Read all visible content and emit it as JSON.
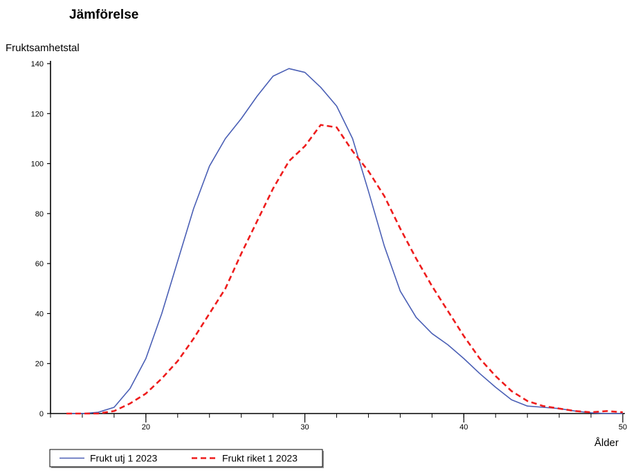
{
  "chart_data": {
    "type": "line",
    "title": "Jämförelse",
    "ylabel": "Fruktsamhetstal",
    "xlabel": "Ålder",
    "xlim": [
      14,
      50
    ],
    "ylim": [
      0,
      140
    ],
    "x_ticks": [
      20,
      30,
      40,
      50
    ],
    "y_ticks": [
      0,
      20,
      40,
      60,
      80,
      100,
      120,
      140
    ],
    "grid": false,
    "legend_position": "bottom-left",
    "series": [
      {
        "name": "Frukt utj 1 2023",
        "color": "#4A5FB5",
        "style": "solid",
        "x": [
          15,
          16,
          17,
          18,
          19,
          20,
          21,
          22,
          23,
          24,
          25,
          26,
          27,
          28,
          29,
          30,
          31,
          32,
          33,
          34,
          35,
          36,
          37,
          38,
          39,
          40,
          41,
          42,
          43,
          44,
          45,
          46,
          47,
          48,
          49,
          50
        ],
        "values": [
          0,
          0,
          0.5,
          2.5,
          10,
          22,
          40,
          61,
          82,
          99,
          110,
          118,
          127,
          135,
          138,
          136.5,
          130.5,
          123,
          110,
          89,
          67,
          49,
          38.5,
          32,
          27.5,
          22,
          16,
          10.5,
          5.5,
          3,
          2.5,
          2,
          1,
          0.3,
          0,
          0
        ]
      },
      {
        "name": "Frukt riket 1 2023",
        "color": "#EE1C1C",
        "style": "dashed",
        "x": [
          15,
          16,
          17,
          18,
          19,
          20,
          21,
          22,
          23,
          24,
          25,
          26,
          27,
          28,
          29,
          30,
          31,
          32,
          33,
          34,
          35,
          36,
          37,
          38,
          39,
          40,
          41,
          42,
          43,
          44,
          45,
          46,
          47,
          48,
          49,
          50
        ],
        "values": [
          0,
          0,
          0,
          1,
          4,
          8,
          14,
          21,
          30,
          40,
          50,
          64,
          77,
          90,
          101,
          107,
          115.5,
          114.5,
          105,
          97,
          87,
          74,
          62,
          51,
          41,
          31,
          22,
          15,
          9,
          5,
          3,
          2,
          1,
          0.5,
          1,
          0.5
        ]
      }
    ]
  }
}
